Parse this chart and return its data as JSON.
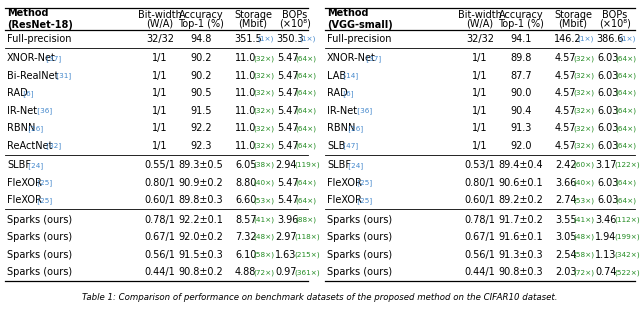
{
  "left_header_row1": [
    "Method",
    "Bit-width",
    "Accuracy",
    "Storage",
    "BOPs"
  ],
  "left_header_row2": [
    "(ResNet-18)",
    "(W/A)",
    "Top-1 (%)",
    "(Mbit)",
    "(×10⁸)"
  ],
  "right_header_row1": [
    "Method",
    "Bit-width",
    "Accuracy",
    "Storage",
    "BOPs"
  ],
  "right_header_row2": [
    "(VGG-small)",
    "(W/A)",
    "Top-1 (%)",
    "(Mbit)",
    "(×10⁸)"
  ],
  "left_rows": [
    [
      "Full-precision",
      "32/32",
      "94.8",
      [
        "351.5",
        "1"
      ],
      [
        "350.3",
        "1"
      ]
    ],
    [
      "XNOR-Net",
      "37",
      "1/1",
      "90.2",
      [
        "11.0",
        "32"
      ],
      [
        "5.47",
        "64"
      ]
    ],
    [
      "Bi-RealNet",
      "31",
      "1/1",
      "90.2",
      [
        "11.0",
        "32"
      ],
      [
        "5.47",
        "64"
      ]
    ],
    [
      "RAD",
      "6",
      "1/1",
      "90.5",
      [
        "11.0",
        "32"
      ],
      [
        "5.47",
        "64"
      ]
    ],
    [
      "IR-Net",
      "36",
      "1/1",
      "91.5",
      [
        "11.0",
        "32"
      ],
      [
        "5.47",
        "64"
      ]
    ],
    [
      "RBNN",
      "26",
      "1/1",
      "92.2",
      [
        "11.0",
        "32"
      ],
      [
        "5.47",
        "64"
      ]
    ],
    [
      "ReActNet",
      "32",
      "1/1",
      "92.3",
      [
        "11.0",
        "32"
      ],
      [
        "5.47",
        "64"
      ]
    ],
    [
      "SLBF",
      "24",
      "0.55/1",
      "89.3±0.5",
      [
        "6.05",
        "38"
      ],
      [
        "2.94",
        "119"
      ]
    ],
    [
      "FleXOR",
      "25",
      "0.80/1",
      "90.9±0.2",
      [
        "8.80",
        "40"
      ],
      [
        "5.47",
        "64"
      ]
    ],
    [
      "FleXOR",
      "25",
      "0.60/1",
      "89.8±0.3",
      [
        "6.60",
        "53"
      ],
      [
        "5.47",
        "64"
      ]
    ],
    [
      "Sparks (ours)",
      "",
      "0.78/1",
      "92.2±0.1",
      [
        "8.57",
        "41"
      ],
      [
        "3.96",
        "88"
      ]
    ],
    [
      "Sparks (ours)",
      "",
      "0.67/1",
      "92.0±0.2",
      [
        "7.32",
        "48"
      ],
      [
        "2.97",
        "118"
      ]
    ],
    [
      "Sparks (ours)",
      "",
      "0.56/1",
      "91.5±0.3",
      [
        "6.10",
        "58"
      ],
      [
        "1.63",
        "215"
      ]
    ],
    [
      "Sparks (ours)",
      "",
      "0.44/1",
      "90.8±0.2",
      [
        "4.88",
        "72"
      ],
      [
        "0.97",
        "361"
      ]
    ]
  ],
  "right_rows": [
    [
      "Full-precision",
      "32/32",
      "94.1",
      [
        "146.2",
        "1"
      ],
      [
        "386.6",
        "1"
      ]
    ],
    [
      "XNOR-Net",
      "37",
      "1/1",
      "89.8",
      [
        "4.57",
        "32"
      ],
      [
        "6.03",
        "64"
      ]
    ],
    [
      "LAB",
      "14",
      "1/1",
      "87.7",
      [
        "4.57",
        "32"
      ],
      [
        "6.03",
        "64"
      ]
    ],
    [
      "RAD",
      "6",
      "1/1",
      "90.0",
      [
        "4.57",
        "32"
      ],
      [
        "6.03",
        "64"
      ]
    ],
    [
      "IR-Net",
      "36",
      "1/1",
      "90.4",
      [
        "4.57",
        "32"
      ],
      [
        "6.03",
        "64"
      ]
    ],
    [
      "RBNN",
      "26",
      "1/1",
      "91.3",
      [
        "4.57",
        "32"
      ],
      [
        "6.03",
        "64"
      ]
    ],
    [
      "SLB",
      "47",
      "1/1",
      "92.0",
      [
        "4.57",
        "32"
      ],
      [
        "6.03",
        "64"
      ]
    ],
    [
      "SLBF",
      "24",
      "0.53/1",
      "89.4±0.4",
      [
        "2.42",
        "60"
      ],
      [
        "3.17",
        "122"
      ]
    ],
    [
      "FleXOR",
      "25",
      "0.80/1",
      "90.6±0.1",
      [
        "3.66",
        "40"
      ],
      [
        "6.03",
        "64"
      ]
    ],
    [
      "FleXOR",
      "25",
      "0.60/1",
      "89.2±0.2",
      [
        "2.74",
        "53"
      ],
      [
        "6.03",
        "64"
      ]
    ],
    [
      "Sparks (ours)",
      "",
      "0.78/1",
      "91.7±0.2",
      [
        "3.55",
        "41"
      ],
      [
        "3.46",
        "112"
      ]
    ],
    [
      "Sparks (ours)",
      "",
      "0.67/1",
      "91.6±0.1",
      [
        "3.05",
        "48"
      ],
      [
        "1.94",
        "199"
      ]
    ],
    [
      "Sparks (ours)",
      "",
      "0.56/1",
      "91.3±0.3",
      [
        "2.54",
        "58"
      ],
      [
        "1.13",
        "342"
      ]
    ],
    [
      "Sparks (ours)",
      "",
      "0.44/1",
      "90.8±0.3",
      [
        "2.03",
        "72"
      ],
      [
        "0.74",
        "522"
      ]
    ]
  ],
  "sep_after": [
    0,
    6,
    9
  ],
  "green": "#228B22",
  "blue": "#4488CC",
  "gray": "#888888",
  "black": "#000000"
}
